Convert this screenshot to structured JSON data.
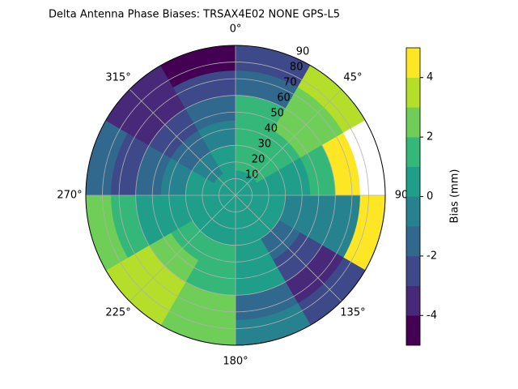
{
  "chart_data": {
    "type": "polar_contour",
    "title": "Delta Antenna Phase Biases: TRSAX4E02       NONE GPS-L5",
    "colorbar_label": "Bias (mm)",
    "r_bins": [
      0,
      15,
      30,
      45,
      60,
      75,
      90
    ],
    "az_bins": [
      0,
      30,
      60,
      90,
      120,
      150,
      180,
      210,
      240,
      270,
      300,
      330,
      360
    ],
    "values": [
      [
        0.5,
        0.5,
        0.5,
        0.5,
        0.5,
        0.5,
        0.5,
        0.5,
        0.5,
        0.5,
        0.5,
        0.5
      ],
      [
        1.5,
        1.5,
        0.5,
        0.5,
        0.5,
        0.5,
        1,
        1,
        0.5,
        0.5,
        -0.5,
        0.5
      ],
      [
        1.5,
        1.5,
        0.5,
        -0.5,
        -1.5,
        0.5,
        1.5,
        1.5,
        0.5,
        -0.5,
        -1.5,
        -0.5
      ],
      [
        1.5,
        2.5,
        1.5,
        -0.5,
        -2.5,
        0.5,
        1.5,
        2.5,
        0.5,
        -1.5,
        -2.5,
        -1.5
      ],
      [
        -1.5,
        2.5,
        4.5,
        -0.5,
        -3.5,
        -1.5,
        2.5,
        3.5,
        1.5,
        -2.5,
        -3.5,
        -2.5
      ],
      [
        -2.5,
        3.5,
        5.5,
        4.5,
        -2.5,
        -0.5,
        2.5,
        3.5,
        2.5,
        -1.5,
        -3.5,
        -4.5
      ]
    ],
    "levels": [
      -5,
      -4,
      -3,
      -2,
      -1,
      0,
      1,
      2,
      3,
      4,
      5
    ],
    "colors": [
      "#440154",
      "#482878",
      "#3e4989",
      "#31688e",
      "#26828e",
      "#1f9e89",
      "#35b779",
      "#6ece58",
      "#b5de2b",
      "#fde725"
    ],
    "rlim": [
      0,
      90
    ],
    "rticks": [
      10,
      20,
      30,
      40,
      50,
      60,
      70,
      80,
      90
    ],
    "thetaticks": [
      {
        "value": 0,
        "label": "0°"
      },
      {
        "value": 45,
        "label": "45°"
      },
      90,
      {
        "value": 135,
        "label": "135°"
      },
      {
        "value": 180,
        "label": "180°"
      },
      {
        "value": 225,
        "label": "225°"
      },
      {
        "value": 270,
        "label": "270°"
      },
      {
        "value": 315,
        "label": "315°"
      }
    ],
    "clim": [
      -5,
      5
    ],
    "cticks": [
      -4,
      -2,
      0,
      2,
      4
    ],
    "grid": true
  }
}
